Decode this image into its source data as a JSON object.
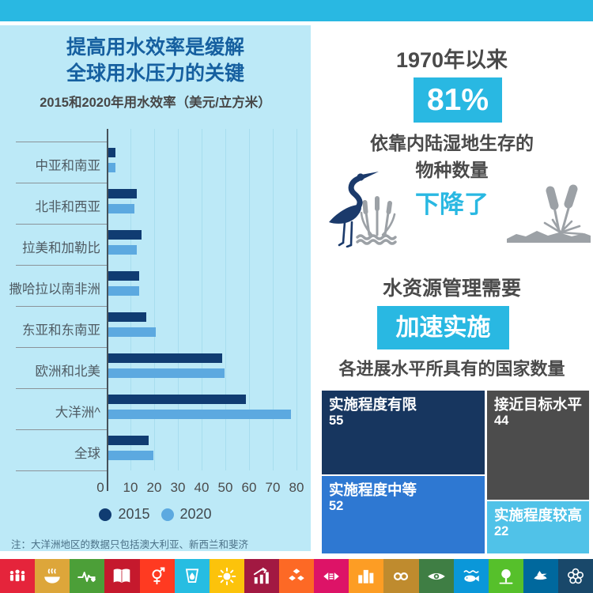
{
  "accent_cyan": "#29B8E2",
  "top_bar": {
    "color": "#29B8E2"
  },
  "left_panel": {
    "bg": "#BCE9F7",
    "title_line1": "提高用水效率是缓解",
    "title_line2": "全球用水压力的关键",
    "title_color": "#1660A0",
    "subtitle": "2015和2020年用水效率（美元/立方米）",
    "note": "注：大洋洲地区的数据只包括澳大利亚、新西兰和斐济",
    "legend": [
      {
        "label": "2015",
        "color": "#103C72"
      },
      {
        "label": "2020",
        "color": "#5CA9E0"
      }
    ]
  },
  "chart_data": [
    {
      "type": "bar",
      "orientation": "horizontal",
      "title": "2015和2020年用水效率（美元/立方米）",
      "categories": [
        "中亚和南亚",
        "北非和西亚",
        "拉美和加勒比",
        "撒哈拉以南非洲",
        "东亚和东南亚",
        "欧洲和北美",
        "大洋洲^",
        "全球"
      ],
      "series": [
        {
          "name": "2015",
          "color": "#103C72",
          "values": [
            3,
            12,
            14,
            13,
            16,
            48,
            58,
            17
          ]
        },
        {
          "name": "2020",
          "color": "#5CA9E0",
          "values": [
            3,
            11,
            12,
            13,
            20,
            49,
            77,
            19
          ]
        }
      ],
      "x_ticks": [
        0,
        10,
        20,
        30,
        40,
        50,
        60,
        70,
        80
      ],
      "xlim": [
        0,
        83
      ],
      "grid": true,
      "legend_position": "bottom",
      "note": "注：大洋洲地区的数据只包括澳大利亚、新西兰和斐济"
    },
    {
      "type": "treemap",
      "title": "各进展水平所具有的国家数量",
      "cells": [
        {
          "label": "实施程度有限",
          "value": 55,
          "color": "#17365F"
        },
        {
          "label": "接近目标水平",
          "value": 44,
          "color": "#4C4C4C"
        },
        {
          "label": "实施程度中等",
          "value": 52,
          "color": "#2E78D2"
        },
        {
          "label": "实施程度较高",
          "value": 22,
          "color": "#50C2E8"
        }
      ]
    }
  ],
  "right_panel": {
    "wetlands": {
      "since_label": "1970年以来",
      "percent": "81%",
      "line1": "依靠内陆湿地生存的",
      "line2": "物种数量",
      "declined": "下降了",
      "heron_icon_color": "#1B3A6B",
      "reeds_icon_color": "#9CA1A6"
    },
    "management": {
      "heading": "水资源管理需要",
      "badge": "加速实施",
      "treemap_title": "各进展水平所具有的国家数量",
      "treemap_cells": [
        {
          "label": "实施程度有限",
          "value": "55",
          "color": "#17365F"
        },
        {
          "label": "接近目标水平",
          "value": "44",
          "color": "#4C4C4C"
        },
        {
          "label": "实施程度中等",
          "value": "52",
          "color": "#2E78D2"
        },
        {
          "label": "实施程度较高",
          "value": "22",
          "color": "#50C2E8"
        }
      ]
    }
  },
  "footer": {
    "sdg_tiles": [
      {
        "name": "sdg-1-no-poverty",
        "icon": "people-icon",
        "color": "#E5243B"
      },
      {
        "name": "sdg-2-zero-hunger",
        "icon": "bowl-icon",
        "color": "#DDA63A"
      },
      {
        "name": "sdg-3-good-health",
        "icon": "heartbeat-icon",
        "color": "#4C9F38"
      },
      {
        "name": "sdg-4-education",
        "icon": "book-icon",
        "color": "#C5192D"
      },
      {
        "name": "sdg-5-gender-equality",
        "icon": "gender-icon",
        "color": "#FF3A21"
      },
      {
        "name": "sdg-6-clean-water",
        "icon": "water-icon",
        "color": "#26BDE2"
      },
      {
        "name": "sdg-7-clean-energy",
        "icon": "sun-icon",
        "color": "#FCC30B"
      },
      {
        "name": "sdg-8-economic-growth",
        "icon": "growth-chart-icon",
        "color": "#A21942"
      },
      {
        "name": "sdg-9-industry",
        "icon": "cubes-icon",
        "color": "#FD6925"
      },
      {
        "name": "sdg-10-inequalities",
        "icon": "equality-icon",
        "color": "#DD1367"
      },
      {
        "name": "sdg-11-cities",
        "icon": "buildings-icon",
        "color": "#FD9D24"
      },
      {
        "name": "sdg-12-consumption",
        "icon": "infinity-icon",
        "color": "#BF8B2E"
      },
      {
        "name": "sdg-13-climate",
        "icon": "eye-icon",
        "color": "#3F7E44"
      },
      {
        "name": "sdg-14-life-below-water",
        "icon": "fish-icon",
        "color": "#0A97D9"
      },
      {
        "name": "sdg-15-life-on-land",
        "icon": "tree-icon",
        "color": "#56C02B"
      },
      {
        "name": "sdg-16-peace-justice",
        "icon": "dove-icon",
        "color": "#00689D"
      },
      {
        "name": "sdg-17-partnerships",
        "icon": "wheel-icon",
        "color": "#19486A"
      }
    ]
  }
}
